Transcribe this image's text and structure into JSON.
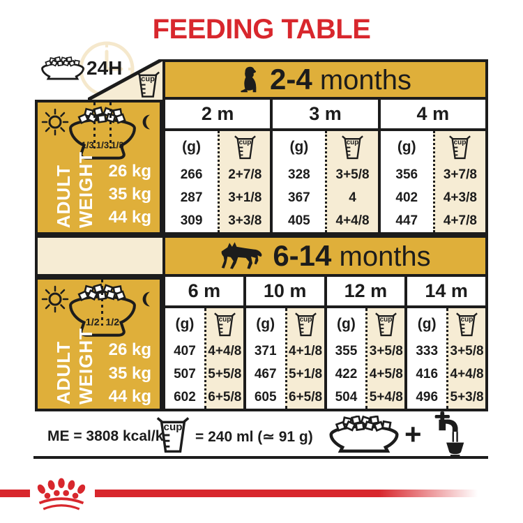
{
  "title": "FEEDING TABLE",
  "top_legend": {
    "hours": "24H",
    "cup": "cup"
  },
  "weight_panel": {
    "label_line1": "ADULT",
    "label_line2": "WEIGHT",
    "weights": [
      "26 kg",
      "35 kg",
      "44 kg"
    ]
  },
  "sections": [
    {
      "age_range": "2-4",
      "age_unit": "months",
      "dog_icon": "puppy-icon",
      "portions": [
        "1/3",
        "1/3",
        "1/3"
      ],
      "unit_g": "(g)",
      "unit_cup": "cup",
      "columns": [
        {
          "month": "2 m",
          "grams": [
            "266",
            "287",
            "309"
          ],
          "cups": [
            "2+7/8",
            "3+1/8",
            "3+3/8"
          ]
        },
        {
          "month": "3 m",
          "grams": [
            "328",
            "367",
            "405"
          ],
          "cups": [
            "3+5/8",
            "4",
            "4+4/8"
          ]
        },
        {
          "month": "4 m",
          "grams": [
            "356",
            "402",
            "447"
          ],
          "cups": [
            "3+7/8",
            "4+3/8",
            "4+7/8"
          ]
        }
      ]
    },
    {
      "age_range": "6-14",
      "age_unit": "months",
      "dog_icon": "german-shepherd-icon",
      "portions": [
        "1/2",
        "1/2"
      ],
      "unit_g": "(g)",
      "unit_cup": "cup",
      "columns": [
        {
          "month": "6 m",
          "grams": [
            "407",
            "507",
            "602"
          ],
          "cups": [
            "4+4/8",
            "5+5/8",
            "6+5/8"
          ]
        },
        {
          "month": "10 m",
          "grams": [
            "371",
            "467",
            "605"
          ],
          "cups": [
            "4+1/8",
            "5+1/8",
            "6+5/8"
          ]
        },
        {
          "month": "12 m",
          "grams": [
            "355",
            "422",
            "504"
          ],
          "cups": [
            "3+5/8",
            "4+5/8",
            "5+4/8"
          ]
        },
        {
          "month": "14 m",
          "grams": [
            "333",
            "416",
            "496"
          ],
          "cups": [
            "3+5/8",
            "4+4/8",
            "5+3/8"
          ]
        }
      ]
    }
  ],
  "footer": {
    "energy": "ME = 3808 kcal/kg",
    "cup": "cup",
    "cup_equiv": "= 240 ml (≃ 91 g)",
    "plus": "+"
  },
  "colors": {
    "gold": "#DFAF3A",
    "cream": "#F6ECD4",
    "red": "#D8272D",
    "black": "#1C1C1C"
  }
}
